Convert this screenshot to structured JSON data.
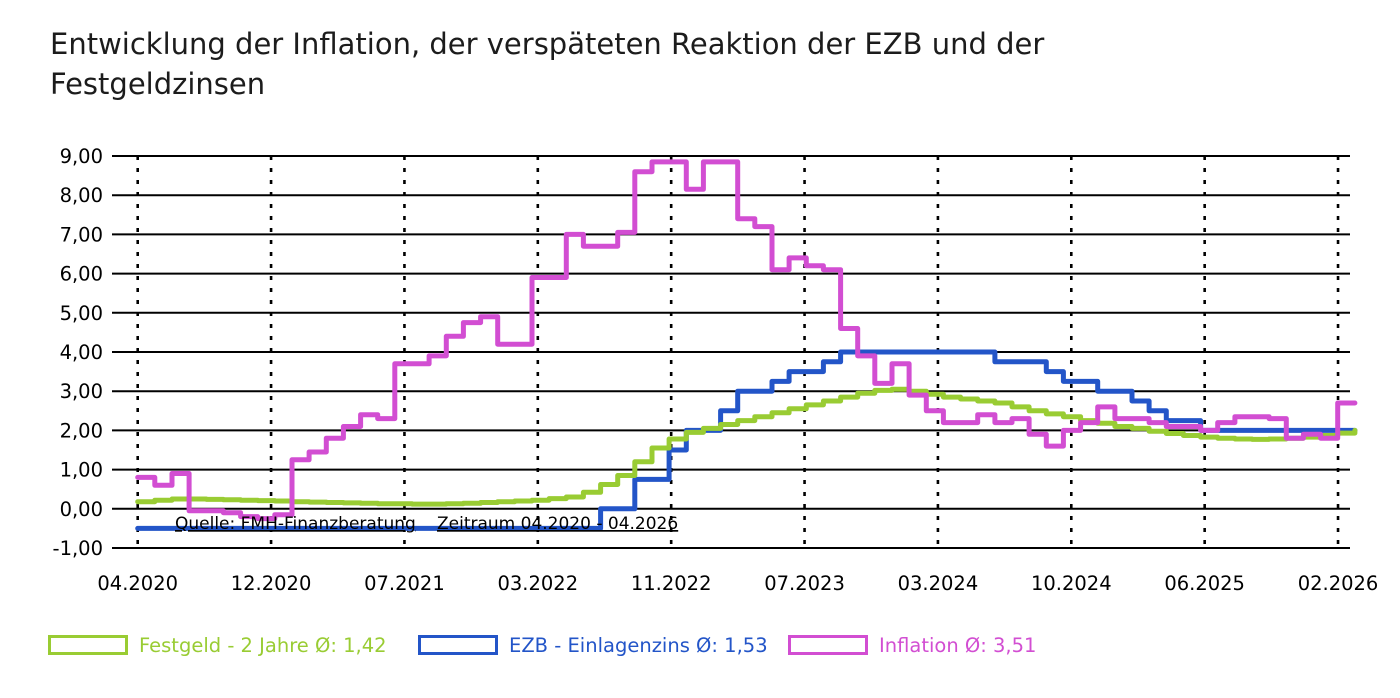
{
  "header": {
    "title_lines": [
      "Entwicklung der Inflation, der verspäteten Reaktion der EZB und der",
      "Festgeldzinsen"
    ]
  },
  "legend": {
    "items": [
      {
        "id": "festgeld",
        "label": "Festgeld - 2 Jahre Ø: 1,42",
        "color": "#99cc33"
      },
      {
        "id": "ezb",
        "label": "EZB - Einlagenzins Ø: 1,53",
        "color": "#2355c8"
      },
      {
        "id": "inflation",
        "label": "Inflation Ø: 3,51",
        "color": "#d24ed2"
      }
    ]
  },
  "chart_data": {
    "type": "line",
    "title": "Entwicklung der Inflation, der verspäteten Reaktion der EZB und der Festgeldzinsen",
    "xlabel": "",
    "ylabel": "",
    "ylim": [
      -1.0,
      9.0
    ],
    "grid": "horizontal-solid, vertical-dashed",
    "legend_position": "bottom",
    "x_start": "04.2020",
    "x_end": "03.2026",
    "x_frequency": "monthly",
    "x_tick_labels": [
      "04.2020",
      "12.2020",
      "07.2021",
      "03.2022",
      "11.2022",
      "07.2023",
      "03.2024",
      "10.2024",
      "06.2025",
      "02.2026"
    ],
    "y_ticks": [
      {
        "v": 9,
        "label": "9,00"
      },
      {
        "v": 8,
        "label": "8,00"
      },
      {
        "v": 7,
        "label": "7,00"
      },
      {
        "v": 6,
        "label": "6,00"
      },
      {
        "v": 5,
        "label": "5,00"
      },
      {
        "v": 4,
        "label": "4,00"
      },
      {
        "v": 3,
        "label": "3,00"
      },
      {
        "v": 2,
        "label": "2,00"
      },
      {
        "v": 1,
        "label": "1,00"
      },
      {
        "v": 0,
        "label": "0,00"
      },
      {
        "v": -1,
        "label": "-1,00"
      }
    ],
    "annotations": {
      "source": "Quelle: FMH-Finanzberatung",
      "period": "Zeitraum 04.2020 - 04.2026"
    },
    "series": [
      {
        "id": "festgeld",
        "name": "Festgeld - 2 Jahre",
        "average": "1,42",
        "color": "#99cc33",
        "values": [
          0.18,
          0.22,
          0.25,
          0.25,
          0.24,
          0.23,
          0.22,
          0.21,
          0.2,
          0.18,
          0.17,
          0.16,
          0.15,
          0.14,
          0.13,
          0.13,
          0.12,
          0.12,
          0.13,
          0.14,
          0.16,
          0.18,
          0.2,
          0.22,
          0.26,
          0.3,
          0.42,
          0.62,
          0.85,
          1.2,
          1.55,
          1.78,
          1.95,
          2.05,
          2.15,
          2.25,
          2.35,
          2.45,
          2.55,
          2.65,
          2.75,
          2.85,
          2.95,
          3.02,
          3.05,
          3.0,
          2.92,
          2.85,
          2.8,
          2.75,
          2.7,
          2.6,
          2.5,
          2.42,
          2.35,
          2.25,
          2.18,
          2.1,
          2.05,
          1.98,
          1.92,
          1.87,
          1.83,
          1.8,
          1.78,
          1.77,
          1.78,
          1.8,
          1.83,
          1.87,
          1.93,
          2.0
        ]
      },
      {
        "id": "ezb",
        "name": "EZB - Einlagenzins",
        "average": "1,53",
        "color": "#2355c8",
        "values": [
          -0.5,
          -0.5,
          -0.5,
          -0.5,
          -0.5,
          -0.5,
          -0.5,
          -0.5,
          -0.5,
          -0.5,
          -0.5,
          -0.5,
          -0.5,
          -0.5,
          -0.5,
          -0.5,
          -0.5,
          -0.5,
          -0.5,
          -0.5,
          -0.5,
          -0.5,
          -0.5,
          -0.5,
          -0.5,
          -0.5,
          -0.5,
          0.0,
          0.0,
          0.75,
          0.75,
          1.5,
          2.0,
          2.0,
          2.5,
          3.0,
          3.0,
          3.25,
          3.5,
          3.5,
          3.75,
          4.0,
          4.0,
          4.0,
          4.0,
          4.0,
          4.0,
          4.0,
          4.0,
          4.0,
          3.75,
          3.75,
          3.75,
          3.5,
          3.25,
          3.25,
          3.0,
          3.0,
          2.75,
          2.5,
          2.25,
          2.25,
          2.0,
          2.0,
          2.0,
          2.0,
          2.0,
          2.0,
          2.0,
          2.0,
          2.0,
          2.0
        ]
      },
      {
        "id": "inflation",
        "name": "Inflation",
        "average": "3,51",
        "color": "#d24ed2",
        "values": [
          0.8,
          0.6,
          0.9,
          -0.05,
          -0.05,
          -0.1,
          -0.2,
          -0.25,
          -0.15,
          1.25,
          1.45,
          1.8,
          2.1,
          2.4,
          2.3,
          3.7,
          3.7,
          3.9,
          4.4,
          4.75,
          4.9,
          4.2,
          4.2,
          5.9,
          5.9,
          7.0,
          6.7,
          6.7,
          7.05,
          8.6,
          8.85,
          8.85,
          8.15,
          8.85,
          8.85,
          7.4,
          7.2,
          6.1,
          6.4,
          6.2,
          6.1,
          4.6,
          3.9,
          3.2,
          3.7,
          2.9,
          2.5,
          2.2,
          2.2,
          2.4,
          2.2,
          2.3,
          1.9,
          1.6,
          2.0,
          2.2,
          2.6,
          2.3,
          2.3,
          2.2,
          2.1,
          2.1,
          2.0,
          2.2,
          2.35,
          2.35,
          2.3,
          1.8,
          1.9,
          1.8,
          2.7,
          2.7
        ]
      }
    ]
  }
}
